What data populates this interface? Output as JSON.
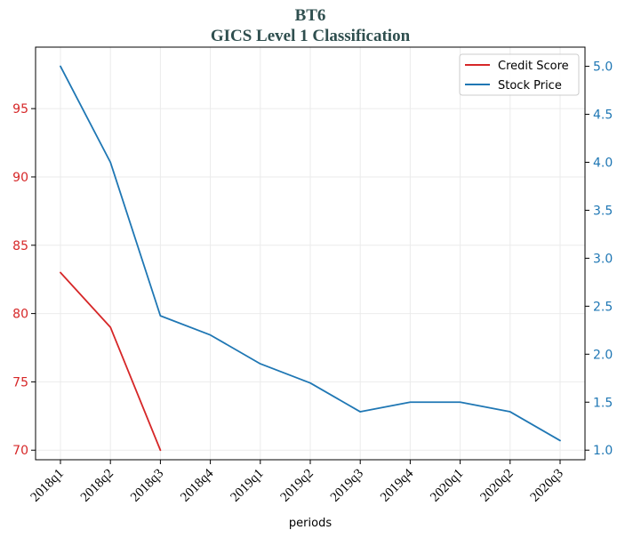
{
  "chart_data": {
    "type": "line",
    "title": "BT6",
    "subtitle": "GICS Level 1 Classification",
    "xlabel": "periods",
    "categories": [
      "2018q1",
      "2018q2",
      "2018q3",
      "2018q4",
      "2019q1",
      "2019q2",
      "2019q3",
      "2019q4",
      "2020q1",
      "2020q2",
      "2020q3"
    ],
    "left_axis": {
      "ticks": [
        70,
        75,
        80,
        85,
        90,
        95
      ],
      "ylim": [
        69.3,
        99.5
      ],
      "color": "#d62728"
    },
    "right_axis": {
      "ticks": [
        1.0,
        1.5,
        2.0,
        2.5,
        3.0,
        3.5,
        4.0,
        4.5,
        5.0
      ],
      "tick_labels": [
        "1.0",
        "1.5",
        "2.0",
        "2.5",
        "3.0",
        "3.5",
        "4.0",
        "4.5",
        "5.0"
      ],
      "ylim": [
        0.9,
        5.2
      ],
      "color": "#1f77b4"
    },
    "series": [
      {
        "name": "Credit Score",
        "axis": "left",
        "color": "#d62728",
        "values": [
          83,
          79,
          70,
          null,
          null,
          null,
          null,
          null,
          null,
          null,
          null
        ]
      },
      {
        "name": "Stock Price",
        "axis": "right",
        "color": "#1f77b4",
        "values": [
          5.0,
          4.0,
          2.4,
          2.2,
          1.9,
          1.7,
          1.4,
          1.5,
          1.5,
          1.4,
          1.1
        ]
      }
    ],
    "grid": true,
    "legend_position": "top-right"
  }
}
